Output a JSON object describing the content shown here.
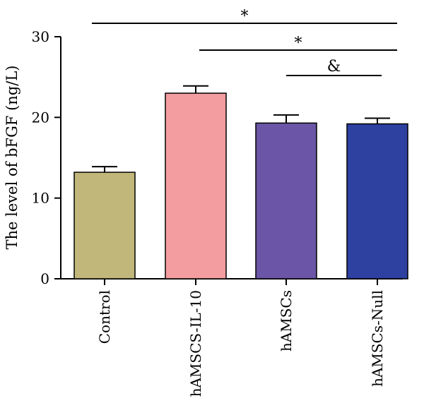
{
  "chart_data": {
    "type": "bar",
    "categories": [
      "Control",
      "hAMSCS-IL-10",
      "hAMSCs",
      "hAMSCs-Null"
    ],
    "values": [
      13.2,
      23.0,
      19.3,
      19.2
    ],
    "errors": [
      0.7,
      0.9,
      1.0,
      0.7
    ],
    "colors": [
      "#c2b77a",
      "#f49da1",
      "#6b55a6",
      "#2e40a0"
    ],
    "xlabel": "",
    "ylabel": "The level of bFGF (ng/L)",
    "ylim": [
      0,
      30
    ],
    "yticks": [
      0,
      10,
      20,
      30
    ],
    "grid": false,
    "significance": [
      {
        "from": 0,
        "to": 3,
        "label": "*"
      },
      {
        "from": 1,
        "to": 3,
        "label": "*"
      },
      {
        "from": 2,
        "to": 3,
        "label": "&"
      }
    ]
  }
}
